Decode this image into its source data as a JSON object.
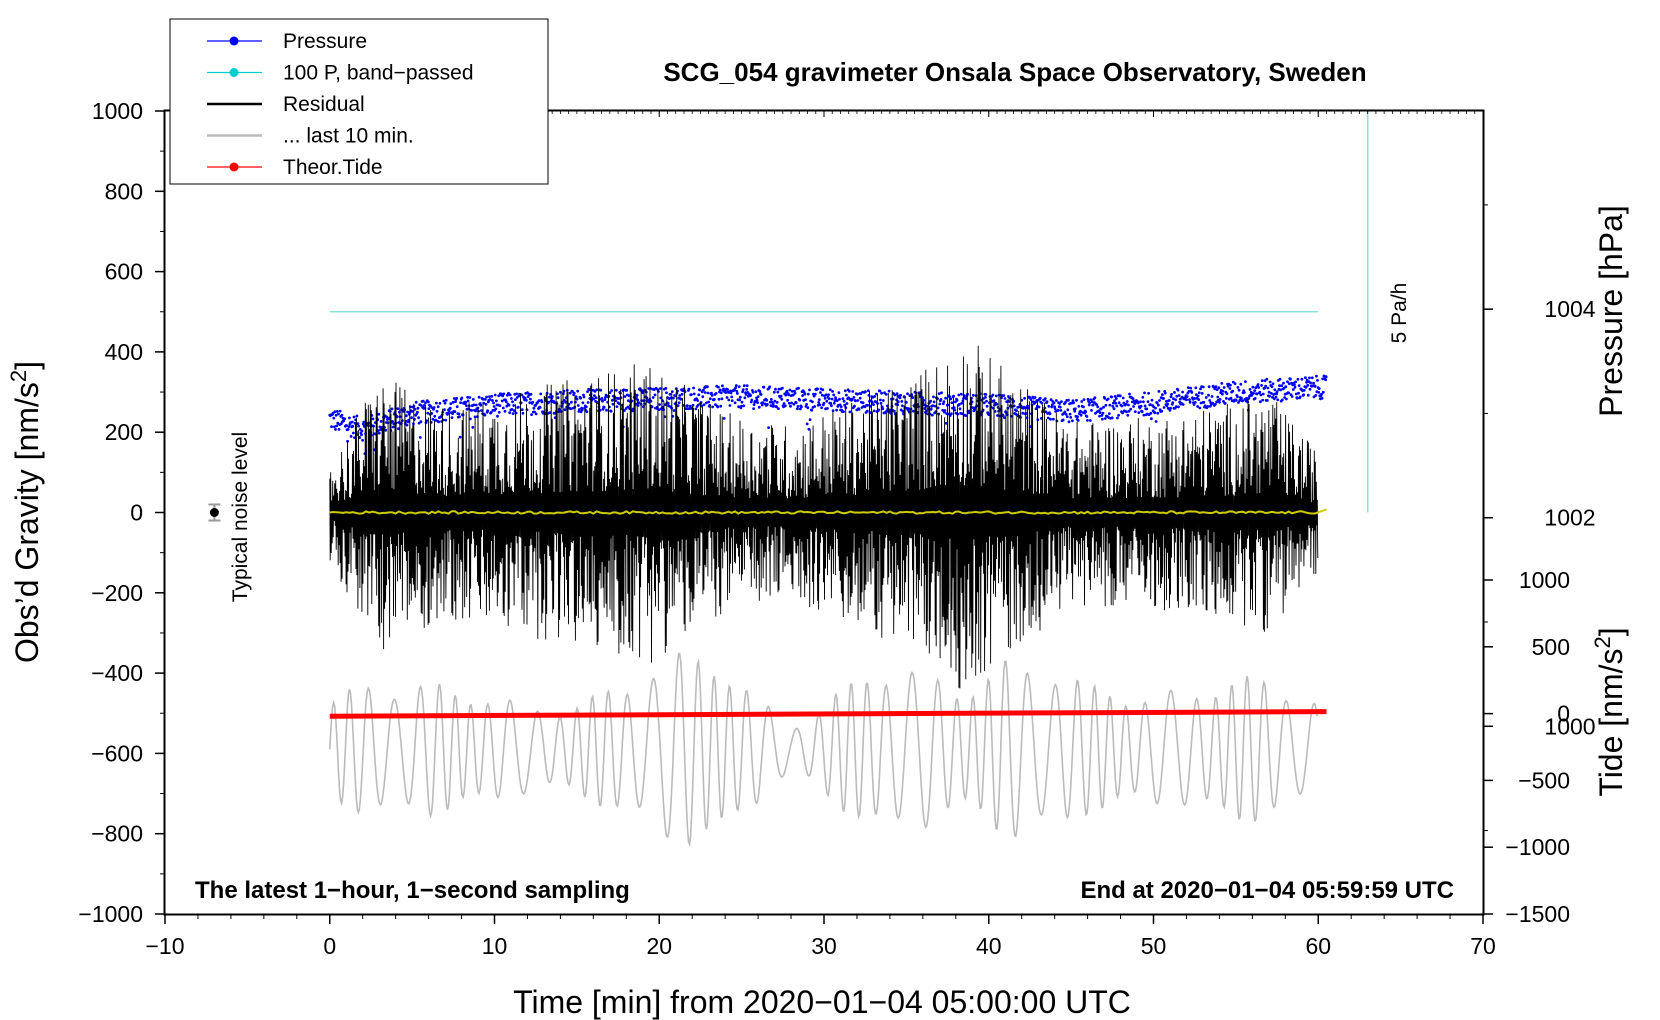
{
  "chart_data": {
    "type": "line",
    "title": "SCG_054 gravimeter Onsala Space Observatory, Sweden",
    "xlabel": "Time [min] from 2020−01−04 05:00:00 UTC",
    "ylabel_left": "Obs’d Gravity [nm/s²]",
    "ylabel_right_pressure": "Pressure [hPa]",
    "ylabel_right_tide": "Tide [nm/s²]",
    "xlim": [
      -10,
      70
    ],
    "ylim": [
      -1000,
      1000
    ],
    "pressure_ylim": [
      998.2,
      1005.9
    ],
    "tide_ylim": [
      -1500,
      1000
    ],
    "x_ticks": [
      -10,
      0,
      10,
      20,
      30,
      40,
      50,
      60,
      70
    ],
    "x_tick_labels": [
      "−10",
      "0",
      "10",
      "20",
      "30",
      "40",
      "50",
      "60",
      "70"
    ],
    "y_ticks": [
      -1000,
      -800,
      -600,
      -400,
      -200,
      0,
      200,
      400,
      600,
      800,
      1000
    ],
    "y_tick_labels": [
      "−1000",
      "−800",
      "−600",
      "−400",
      "−200",
      "0",
      "200",
      "400",
      "600",
      "800",
      "1000"
    ],
    "pressure_ticks": [
      1000,
      1002,
      1004
    ],
    "pressure_tick_labels": [
      "1000",
      "1002",
      "1004"
    ],
    "tide_ticks": [
      -1500,
      -1000,
      -500,
      0,
      500,
      1000
    ],
    "tide_tick_labels": [
      "−1500",
      "−1000",
      "−500",
      "0",
      "500",
      "1000"
    ],
    "legend": {
      "position": "top-left",
      "entries": [
        {
          "label": "Pressure",
          "color": "#0000ff",
          "marker": true
        },
        {
          "label": "100 P, band−passed",
          "color": "#00cccc",
          "marker": true
        },
        {
          "label": "Residual",
          "color": "#000000",
          "marker": false
        },
        {
          "label": "... last 10 min.",
          "color": "#bbbbbb",
          "marker": false
        },
        {
          "label": "Theor.Tide",
          "color": "#ff0000",
          "marker": true
        }
      ]
    },
    "series": [
      {
        "name": "Pressure",
        "axis": "pressure",
        "color": "#0000ff",
        "x": [
          0,
          2,
          5,
          10,
          15,
          20,
          25,
          30,
          35,
          40,
          45,
          50,
          55,
          60
        ],
        "y": [
          1002.95,
          1002.85,
          1003.0,
          1003.08,
          1003.12,
          1003.14,
          1003.16,
          1003.13,
          1003.1,
          1003.08,
          1003.02,
          1003.1,
          1003.2,
          1003.25
        ]
      },
      {
        "name": "100 P, band−passed",
        "axis": "gravity",
        "color": "#00cccc",
        "x": [
          0,
          60
        ],
        "y": [
          500,
          500
        ]
      },
      {
        "name": "Residual",
        "axis": "gravity",
        "color": "#000000",
        "x": [
          0,
          3,
          3.7,
          7,
          12,
          19.3,
          24,
          28,
          35.5,
          37.5,
          38.5,
          45,
          50,
          55,
          57,
          60
        ],
        "envelope": [
          120,
          350,
          330,
          270,
          310,
          380,
          250,
          220,
          350,
          410,
          450,
          230,
          240,
          280,
          300,
          150
        ],
        "baseline": 0
      },
      {
        "name": "Residual (smoothed)",
        "axis": "gravity",
        "color": "#cccc00",
        "x": [
          0,
          60,
          60.5
        ],
        "y": [
          0,
          0,
          8
        ]
      },
      {
        "name": "... last 10 min.",
        "axis": "gravity",
        "color": "#bbbbbb",
        "x": [
          0,
          3.5,
          8,
          12,
          19,
          23.7,
          28,
          33,
          38,
          41.2,
          46,
          50,
          53,
          57,
          60
        ],
        "envelope": [
          130,
          230,
          140,
          110,
          200,
          240,
          80,
          190,
          210,
          250,
          150,
          170,
          190,
          160,
          130
        ],
        "baseline": -590
      },
      {
        "name": "Theor.Tide",
        "axis": "tide",
        "color": "#ff0000",
        "x": [
          0,
          60.5
        ],
        "y": [
          -20,
          15
        ]
      }
    ],
    "noise_marker": {
      "x": -7,
      "y": 0,
      "error": 20,
      "label": "Typical noise level"
    },
    "pressure_rate": {
      "x": 63,
      "y_start": 0,
      "y_end": 1000,
      "label": "5 Pa/h"
    },
    "annotations": {
      "bottom_left": "The latest 1−hour, 1−second sampling",
      "bottom_right": "End at 2020−01−04 05:59:59 UTC"
    }
  }
}
